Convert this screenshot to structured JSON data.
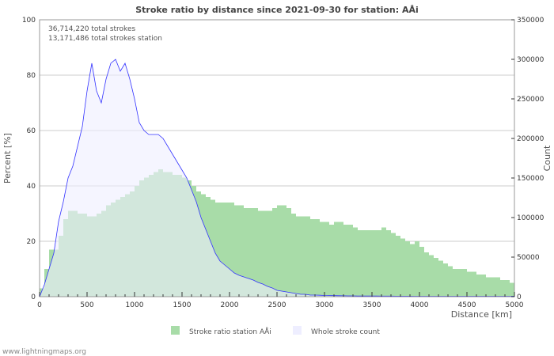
{
  "chart_data": {
    "type": "bar",
    "title": "Stroke ratio by distance since 2021-09-30 for station: AÅi",
    "annotations": [
      "36,714,220 total strokes",
      "13,171,486 total strokes station"
    ],
    "xlabel": "Distance   [km]",
    "ylabel": "Percent   [%]",
    "y2label": "Count",
    "xlim": [
      0,
      5000
    ],
    "ylim": [
      0,
      100
    ],
    "y2lim": [
      0,
      350000
    ],
    "xticks": [
      0,
      500,
      1000,
      1500,
      2000,
      2500,
      3000,
      3500,
      4000,
      4500,
      5000
    ],
    "yticks": [
      0,
      20,
      40,
      60,
      80,
      100
    ],
    "y2ticks": [
      0,
      50000,
      100000,
      150000,
      200000,
      250000,
      300000,
      350000
    ],
    "grid": true,
    "legend_position": "bottom",
    "x_step_km": 50,
    "series": [
      {
        "name": "Stroke ratio station AÅi",
        "axis": "left",
        "type": "bar",
        "color": "#a8dca8",
        "values": [
          3,
          10,
          17,
          17,
          22,
          28,
          31,
          31,
          30,
          30,
          29,
          29,
          30,
          31,
          33,
          34,
          35,
          36,
          37,
          38,
          40,
          42,
          43,
          44,
          45,
          46,
          45,
          45,
          44,
          44,
          43,
          42,
          40,
          38,
          37,
          36,
          35,
          34,
          34,
          34,
          34,
          33,
          33,
          32,
          32,
          32,
          31,
          31,
          31,
          32,
          33,
          33,
          32,
          30,
          29,
          29,
          29,
          28,
          28,
          27,
          27,
          26,
          27,
          27,
          26,
          26,
          25,
          24,
          24,
          24,
          24,
          24,
          25,
          24,
          23,
          22,
          21,
          20,
          19,
          20,
          18,
          16,
          15,
          14,
          13,
          12,
          11,
          10,
          10,
          10,
          9,
          9,
          8,
          8,
          7,
          7,
          7,
          6,
          6,
          5,
          5
        ]
      },
      {
        "name": "Whole stroke count",
        "axis": "right",
        "type": "area",
        "color": "#eeeeff",
        "line_color": "#3333ff",
        "values": [
          0,
          15000,
          35000,
          55000,
          95000,
          120000,
          150000,
          165000,
          190000,
          215000,
          260000,
          295000,
          260000,
          245000,
          275000,
          295000,
          300000,
          285000,
          295000,
          275000,
          250000,
          220000,
          210000,
          205000,
          205000,
          205000,
          200000,
          190000,
          180000,
          170000,
          160000,
          150000,
          135000,
          120000,
          100000,
          85000,
          70000,
          55000,
          45000,
          40000,
          35000,
          30000,
          27000,
          25000,
          23000,
          21000,
          18000,
          16000,
          13000,
          11000,
          8000,
          7000,
          6000,
          5000,
          4000,
          3000,
          3000,
          2000,
          2000,
          1800,
          1500,
          1400,
          1300,
          1200,
          1100,
          1000,
          1000,
          900,
          900,
          800,
          800,
          800,
          700,
          700,
          700,
          600,
          600,
          600,
          600,
          500,
          500,
          500,
          500,
          500,
          500,
          500,
          500,
          500,
          500,
          500,
          500,
          500,
          500,
          500,
          500,
          500,
          500,
          500,
          500,
          500,
          500
        ]
      }
    ]
  },
  "footer": "www.lightningmaps.org"
}
